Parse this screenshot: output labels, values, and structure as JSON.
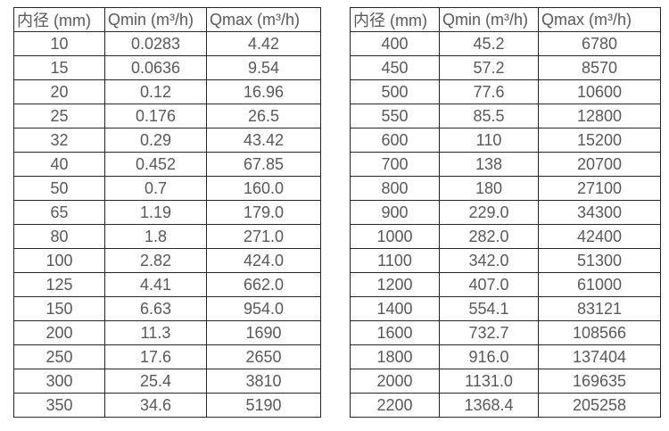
{
  "colors": {
    "background": "#ffffff",
    "border": "#262626",
    "text": "#595959"
  },
  "chart_data": [
    {
      "type": "table",
      "title": "Flow rate specification table (small diameters)",
      "columns": [
        "内径 (mm)",
        "Qmin (m³/h)",
        "Qmax (m³/h)"
      ],
      "rows": [
        [
          "10",
          "0.0283",
          "4.42"
        ],
        [
          "15",
          "0.0636",
          "9.54"
        ],
        [
          "20",
          "0.12",
          "16.96"
        ],
        [
          "25",
          "0.176",
          "26.5"
        ],
        [
          "32",
          "0.29",
          "43.42"
        ],
        [
          "40",
          "0.452",
          "67.85"
        ],
        [
          "50",
          "0.7",
          "160.0"
        ],
        [
          "65",
          "1.19",
          "179.0"
        ],
        [
          "80",
          "1.8",
          "271.0"
        ],
        [
          "100",
          "2.82",
          "424.0"
        ],
        [
          "125",
          "4.41",
          "662.0"
        ],
        [
          "150",
          "6.63",
          "954.0"
        ],
        [
          "200",
          "11.3",
          "1690"
        ],
        [
          "250",
          "17.6",
          "2650"
        ],
        [
          "300",
          "25.4",
          "3810"
        ],
        [
          "350",
          "34.6",
          "5190"
        ]
      ]
    },
    {
      "type": "table",
      "title": "Flow rate specification table (large diameters)",
      "columns": [
        "内径 (mm)",
        "Qmin (m³/h)",
        "Qmax (m³/h)"
      ],
      "rows": [
        [
          "400",
          "45.2",
          "6780"
        ],
        [
          "450",
          "57.2",
          "8570"
        ],
        [
          "500",
          "77.6",
          "10600"
        ],
        [
          "550",
          "85.5",
          "12800"
        ],
        [
          "600",
          "110",
          "15200"
        ],
        [
          "700",
          "138",
          "20700"
        ],
        [
          "800",
          "180",
          "27100"
        ],
        [
          "900",
          "229.0",
          "34300"
        ],
        [
          "1000",
          "282.0",
          "42400"
        ],
        [
          "1100",
          "342.0",
          "51300"
        ],
        [
          "1200",
          "407.0",
          "61000"
        ],
        [
          "1400",
          "554.1",
          "83121"
        ],
        [
          "1600",
          "732.7",
          "108566"
        ],
        [
          "1800",
          "916.0",
          "137404"
        ],
        [
          "2000",
          "1131.0",
          "169635"
        ],
        [
          "2200",
          "1368.4",
          "205258"
        ]
      ]
    }
  ]
}
